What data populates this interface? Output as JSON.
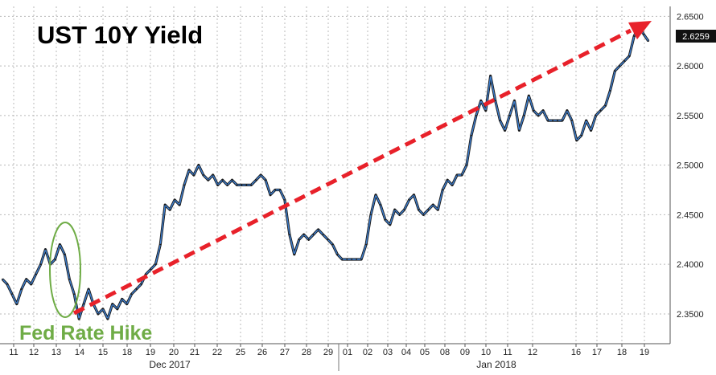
{
  "chart_data": {
    "type": "line",
    "title": "UST 10Y Yield",
    "xlabel": "",
    "ylabel": "",
    "ylim": [
      2.32,
      2.66
    ],
    "grid": true,
    "y_ticks": [
      "2.3500",
      "2.4000",
      "2.4500",
      "2.5000",
      "2.5500",
      "2.6000",
      "2.6500"
    ],
    "x_ticks": [
      "11",
      "12",
      "13",
      "14",
      "15",
      "18",
      "19",
      "20",
      "21",
      "22",
      "25",
      "26",
      "27",
      "28",
      "29",
      "01",
      "02",
      "03",
      "04",
      "05",
      "08",
      "09",
      "10",
      "11",
      "12",
      "16",
      "17",
      "18",
      "19"
    ],
    "month_labels": [
      "Dec 2017",
      "Jan 2018"
    ],
    "last_value": "2.6259",
    "series": [
      {
        "values": [
          2.385,
          2.38,
          2.37,
          2.36,
          2.375,
          2.385,
          2.38,
          2.39,
          2.4,
          2.415,
          2.4,
          2.405,
          2.42,
          2.41,
          2.385,
          2.37,
          2.345,
          2.36,
          2.375,
          2.36,
          2.35,
          2.355,
          2.345,
          2.36,
          2.355,
          2.365,
          2.36,
          2.37,
          2.375,
          2.38,
          2.39,
          2.395,
          2.4,
          2.42,
          2.46,
          2.455,
          2.465,
          2.46,
          2.48,
          2.495,
          2.49,
          2.5,
          2.49,
          2.485,
          2.49,
          2.48,
          2.485,
          2.48,
          2.485,
          2.48,
          2.48,
          2.48,
          2.48,
          2.485,
          2.49,
          2.485,
          2.47,
          2.475,
          2.475,
          2.465,
          2.43,
          2.41,
          2.425,
          2.43,
          2.425,
          2.43,
          2.435,
          2.43,
          2.425,
          2.42,
          2.41,
          2.405,
          2.405,
          2.405,
          2.405,
          2.405,
          2.42,
          2.45,
          2.47,
          2.46,
          2.445,
          2.44,
          2.455,
          2.45,
          2.455,
          2.465,
          2.47,
          2.455,
          2.45,
          2.455,
          2.46,
          2.455,
          2.475,
          2.485,
          2.48,
          2.49,
          2.49,
          2.5,
          2.53,
          2.55,
          2.565,
          2.555,
          2.59,
          2.565,
          2.545,
          2.535,
          2.55,
          2.565,
          2.535,
          2.55,
          2.57,
          2.555,
          2.55,
          2.555,
          2.545,
          2.545,
          2.545,
          2.545,
          2.555,
          2.545,
          2.525,
          2.53,
          2.545,
          2.535,
          2.55,
          2.555,
          2.56,
          2.575,
          2.595,
          2.6,
          2.605,
          2.61,
          2.63,
          2.64,
          2.632,
          2.625
        ]
      }
    ],
    "annotations": {
      "circle_label": "Fed Rate Hike",
      "trend_arrow": "uptrend"
    }
  },
  "colors": {
    "line": "#1a1a1a",
    "line_highlight": "#3d7fd1",
    "arrow": "#e8212a",
    "annotation": "#6fac46",
    "last_tag": "#111111"
  }
}
